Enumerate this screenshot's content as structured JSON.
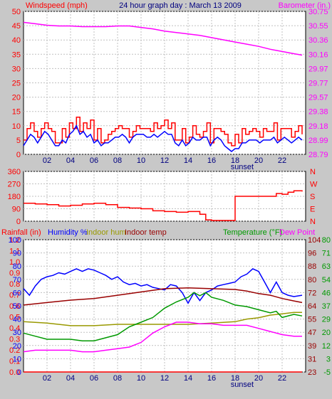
{
  "colors": {
    "background": "#c8c8c8",
    "plot_bg": "#ffffff",
    "wind": "#ff0000",
    "gust": "#0000ff",
    "barometer": "#ff00ff",
    "direction": "#ff0000",
    "rainfall": "#ff0000",
    "humidity": "#0000ff",
    "indoor_hum": "#999900",
    "indoor_temp": "#990000",
    "temperature": "#009900",
    "dew_point": "#ff00ff",
    "axis_text_dark": "#000080",
    "grid": "#c0c0c0"
  },
  "chart_data": [
    {
      "type": "line",
      "title": "24 hour graph day : March 13 2009",
      "ylabel": "Windspeed (mph)",
      "y2label": "Barometer (in.)",
      "ylim": [
        0,
        50
      ],
      "y2lim": [
        28.79,
        30.75
      ],
      "yticks": [
        "0",
        "5",
        "10",
        "15",
        "20",
        "25",
        "30",
        "35",
        "40",
        "45",
        "50"
      ],
      "y2ticks": [
        "28.79",
        "28.99",
        "29.18",
        "29.38",
        "29.57",
        "29.77",
        "29.97",
        "30.16",
        "30.36",
        "30.55",
        "30.75"
      ],
      "xlim": [
        0,
        24
      ],
      "xticks": [
        "02",
        "04",
        "06",
        "08",
        "10",
        "12",
        "14",
        "16",
        "18",
        "20",
        "22"
      ],
      "annotation": "sunset",
      "annotation_x": 18.6,
      "grid": true,
      "series": [
        {
          "name": "Windspeed (mph)",
          "axis": "left",
          "color": "#ff0000",
          "step": true,
          "x": [
            0,
            0.3,
            0.6,
            0.9,
            1.2,
            1.5,
            1.8,
            2.1,
            2.4,
            2.7,
            3,
            3.3,
            3.6,
            3.9,
            4.2,
            4.5,
            4.8,
            5.1,
            5.4,
            5.7,
            6,
            6.3,
            6.6,
            6.9,
            7.2,
            7.5,
            7.8,
            8.1,
            8.4,
            8.7,
            9,
            9.3,
            9.6,
            9.9,
            10.2,
            10.5,
            10.8,
            11.1,
            11.4,
            11.7,
            12,
            12.3,
            12.6,
            12.9,
            13.2,
            13.5,
            13.8,
            14.1,
            14.4,
            14.7,
            15,
            15.3,
            15.6,
            15.9,
            16.2,
            16.5,
            16.8,
            17.1,
            17.4,
            17.7,
            18,
            18.3,
            18.6,
            18.9,
            19.2,
            19.5,
            19.8,
            20.1,
            20.4,
            20.7,
            21,
            21.3,
            21.6,
            21.9,
            22.2,
            22.5,
            22.8,
            23.1,
            23.4,
            23.7
          ],
          "y": [
            5,
            9,
            11,
            8,
            6,
            9,
            11,
            9,
            8,
            4,
            4,
            9,
            6,
            11,
            9,
            13,
            8,
            11,
            9,
            12,
            5,
            9,
            4,
            5,
            7,
            8,
            9,
            10,
            9,
            9,
            6,
            8,
            10,
            9,
            9,
            9,
            8,
            11,
            9,
            10,
            12,
            9,
            11,
            5,
            5,
            9,
            4,
            6,
            10,
            7,
            6,
            8,
            11,
            4,
            9,
            9,
            8,
            7,
            4,
            3,
            7,
            4,
            9,
            7,
            8,
            9,
            8,
            6,
            9,
            8,
            8,
            11,
            5,
            9,
            9,
            9,
            6,
            8,
            10,
            7
          ]
        },
        {
          "name": "Gust",
          "axis": "left",
          "color": "#0000ff",
          "x": [
            0,
            0.3,
            0.6,
            0.9,
            1.2,
            1.5,
            1.8,
            2.1,
            2.4,
            2.7,
            3,
            3.3,
            3.6,
            3.9,
            4.2,
            4.5,
            4.8,
            5.1,
            5.4,
            5.7,
            6,
            6.3,
            6.6,
            6.9,
            7.2,
            7.5,
            7.8,
            8.1,
            8.4,
            8.7,
            9,
            9.3,
            9.6,
            9.9,
            10.2,
            10.5,
            10.8,
            11.1,
            11.4,
            11.7,
            12,
            12.3,
            12.6,
            12.9,
            13.2,
            13.5,
            13.8,
            14.1,
            14.4,
            14.7,
            15,
            15.3,
            15.6,
            15.9,
            16.2,
            16.5,
            16.8,
            17.1,
            17.4,
            17.7,
            18,
            18.3,
            18.6,
            18.9,
            19.2,
            19.5,
            19.8,
            20.1,
            20.4,
            20.7,
            21,
            21.3,
            21.6,
            21.9,
            22.2,
            22.5,
            22.8,
            23.1,
            23.4,
            23.7
          ],
          "y": [
            3,
            5,
            7,
            6,
            4,
            6,
            8,
            7,
            5,
            3,
            3,
            5,
            4,
            7,
            8,
            10,
            7,
            8,
            6,
            7,
            4,
            5,
            3,
            4,
            4,
            5,
            6,
            6,
            7,
            6,
            4,
            6,
            7,
            7,
            7,
            6,
            6,
            7,
            6,
            7,
            8,
            7,
            7,
            4,
            3,
            5,
            3,
            4,
            6,
            5,
            5,
            6,
            6,
            3,
            5,
            6,
            5,
            3,
            2,
            1,
            2,
            2,
            4,
            4,
            5,
            5,
            5,
            4,
            5,
            5,
            5,
            6,
            4,
            5,
            6,
            5,
            4,
            5,
            6,
            5
          ]
        },
        {
          "name": "Barometer (in.)",
          "axis": "right",
          "color": "#ff00ff",
          "x": [
            0,
            1,
            2,
            3,
            4,
            5,
            6,
            7,
            8,
            9,
            10,
            11,
            12,
            13,
            14,
            15,
            16,
            17,
            18,
            19,
            20,
            21,
            22,
            23,
            23.7
          ],
          "y": [
            30.6,
            30.58,
            30.56,
            30.55,
            30.55,
            30.54,
            30.54,
            30.54,
            30.55,
            30.55,
            30.53,
            30.51,
            30.48,
            30.46,
            30.44,
            30.42,
            30.39,
            30.36,
            30.33,
            30.3,
            30.27,
            30.23,
            30.2,
            30.17,
            30.15
          ]
        }
      ]
    },
    {
      "type": "line",
      "ylabel": "",
      "ylim": [
        0,
        360
      ],
      "yticks": [
        "0",
        "90",
        "180",
        "270",
        "360"
      ],
      "y2ticks": [
        "N",
        "E",
        "S",
        "W",
        "N"
      ],
      "xlim": [
        0,
        24
      ],
      "grid": true,
      "series": [
        {
          "name": "Wind direction",
          "color": "#ff0000",
          "x": [
            0,
            1,
            2,
            3,
            4,
            5,
            6,
            7,
            8,
            9,
            10,
            11,
            12,
            13,
            14,
            15,
            15.5,
            16,
            17,
            17.5,
            18,
            19,
            20,
            21,
            21.5,
            22,
            22.5,
            23,
            23.7
          ],
          "y": [
            130,
            125,
            120,
            110,
            115,
            125,
            130,
            120,
            100,
            95,
            90,
            75,
            70,
            65,
            70,
            50,
            10,
            5,
            5,
            5,
            180,
            180,
            180,
            180,
            200,
            195,
            210,
            220,
            215
          ]
        }
      ]
    },
    {
      "type": "line",
      "legend": [
        "Rainfall (in)",
        "Humidity %",
        "Indoor hum",
        "Indoor temp",
        "Temperature (°F)",
        "Dew Point"
      ],
      "xlim": [
        0,
        24
      ],
      "xticks": [
        "02",
        "04",
        "06",
        "08",
        "10",
        "12",
        "14",
        "16",
        "18",
        "20",
        "22"
      ],
      "annotation": "sunset",
      "annotation_x": 18.6,
      "grid": true,
      "axes": {
        "rainfall": {
          "ticks": [
            "0.0",
            "0.1",
            "0.2",
            "0.3",
            "0.4",
            "0.5",
            "0.6",
            "0.7",
            "0.8",
            "0.9",
            "1.0",
            "1.1",
            "1.2"
          ],
          "lim": [
            0,
            1.2
          ]
        },
        "humidity": {
          "ticks": [
            "0",
            "10",
            "20",
            "30",
            "40",
            "50",
            "60",
            "70",
            "80",
            "90",
            "100"
          ],
          "lim": [
            0,
            100
          ]
        },
        "temp_c": {
          "ticks": [
            "23",
            "31",
            "39",
            "47",
            "55",
            "64",
            "72",
            "80",
            "88",
            "96",
            "104"
          ],
          "lim": [
            23,
            104
          ]
        },
        "temp_f": {
          "ticks": [
            "-5",
            "3",
            "12",
            "20",
            "29",
            "37",
            "46",
            "54",
            "63",
            "71",
            "80"
          ],
          "lim": [
            -5,
            80
          ]
        }
      },
      "series": [
        {
          "name": "Humidity %",
          "axis": "humidity",
          "color": "#0000ff",
          "x": [
            0,
            0.5,
            1,
            1.5,
            2,
            2.5,
            3,
            3.5,
            4,
            4.5,
            5,
            5.5,
            6,
            6.5,
            7,
            7.5,
            8,
            8.5,
            9,
            9.5,
            10,
            10.5,
            11,
            11.5,
            12,
            12.5,
            13,
            13.5,
            14,
            14.5,
            15,
            15.5,
            16,
            16.5,
            17,
            17.5,
            18,
            18.5,
            19,
            19.5,
            20,
            20.5,
            21,
            21.5,
            22,
            22.5,
            23,
            23.7
          ],
          "y": [
            63,
            58,
            65,
            70,
            72,
            73,
            75,
            74,
            76,
            78,
            76,
            78,
            77,
            75,
            73,
            70,
            72,
            68,
            66,
            67,
            65,
            66,
            64,
            63,
            62,
            66,
            65,
            60,
            52,
            60,
            54,
            60,
            62,
            65,
            66,
            67,
            68,
            72,
            74,
            78,
            76,
            68,
            60,
            68,
            60,
            58,
            57,
            58
          ]
        },
        {
          "name": "Indoor hum",
          "axis": "humidity",
          "color": "#999900",
          "x": [
            0,
            2,
            4,
            6,
            8,
            10,
            12,
            14,
            16,
            18,
            19,
            20,
            21,
            22,
            23,
            23.7
          ],
          "y": [
            38,
            37,
            35,
            35,
            36,
            36,
            36,
            36,
            37,
            38,
            40,
            41,
            43,
            44,
            45,
            45
          ]
        },
        {
          "name": "Indoor temp",
          "axis": "temp_c",
          "color": "#990000",
          "x": [
            0,
            2,
            4,
            6,
            8,
            10,
            12,
            14,
            16,
            18,
            19,
            20,
            21,
            22,
            23,
            23.7
          ],
          "y": [
            64,
            65.5,
            67,
            68,
            70,
            72,
            74,
            74.5,
            74,
            73.5,
            72.5,
            71,
            70,
            68,
            66.5,
            65.5
          ]
        },
        {
          "name": "Temperature (°F)",
          "axis": "temp_f",
          "color": "#009900",
          "x": [
            0,
            1,
            2,
            3,
            4,
            5,
            6,
            7,
            8,
            9,
            10,
            11,
            12,
            13,
            14,
            14.5,
            15,
            15.5,
            16,
            17,
            18,
            19,
            20,
            21,
            21.5,
            22,
            23,
            23.7
          ],
          "y": [
            20,
            18,
            16,
            16,
            16,
            15,
            15,
            17,
            19,
            24,
            27,
            30,
            36,
            40,
            43,
            46,
            44,
            46,
            43,
            41,
            38,
            37,
            35,
            33,
            34,
            30,
            32,
            31
          ]
        },
        {
          "name": "Dew Point",
          "axis": "temp_f",
          "color": "#ff00ff",
          "x": [
            0,
            1,
            2,
            3,
            4,
            5,
            6,
            7,
            8,
            9,
            10,
            11,
            12,
            13,
            14,
            15,
            16,
            17,
            18,
            19,
            20,
            21,
            22,
            23,
            23.7
          ],
          "y": [
            8,
            9,
            9,
            9,
            9,
            8,
            8,
            9,
            10,
            11,
            14,
            20,
            24,
            27,
            27,
            26,
            26,
            25,
            25,
            25,
            23,
            21,
            19,
            18,
            18
          ]
        },
        {
          "name": "Rainfall (in)",
          "axis": "rainfall",
          "color": "#ff0000",
          "x": [
            0,
            23.7
          ],
          "y": [
            0,
            0
          ]
        }
      ]
    }
  ]
}
